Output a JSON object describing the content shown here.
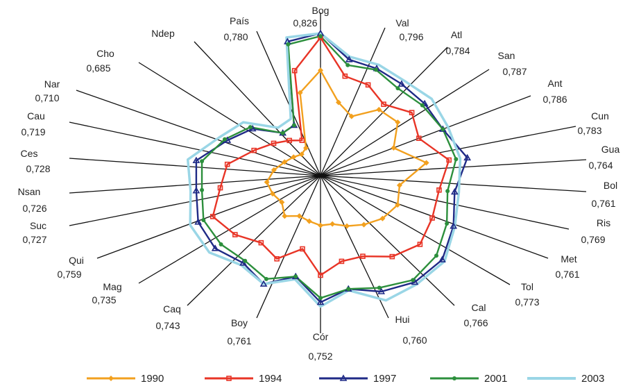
{
  "chart_data": {
    "type": "radar",
    "title": "",
    "axes": [
      {
        "label": "Bog",
        "value": "0,826"
      },
      {
        "label": "Val",
        "value": "0,796"
      },
      {
        "label": "Atl",
        "value": "0,784"
      },
      {
        "label": "San",
        "value": "0,787"
      },
      {
        "label": "Ant",
        "value": "0,786"
      },
      {
        "label": "Cun",
        "value": "0,783"
      },
      {
        "label": "Gua",
        "value": "0,764"
      },
      {
        "label": "Bol",
        "value": "0,761"
      },
      {
        "label": "Ris",
        "value": "0,769"
      },
      {
        "label": "Met",
        "value": "0,761"
      },
      {
        "label": "Tol",
        "value": "0,773"
      },
      {
        "label": "Cal",
        "value": "0,766"
      },
      {
        "label": "Hui",
        "value": "0,760"
      },
      {
        "label": "Cór",
        "value": "0,752"
      },
      {
        "label": "Boy",
        "value": "0,761"
      },
      {
        "label": "Caq",
        "value": "0,743"
      },
      {
        "label": "Mag",
        "value": "0,735"
      },
      {
        "label": "Qui",
        "value": "0,759"
      },
      {
        "label": "Suc",
        "value": "0,727"
      },
      {
        "label": "Nsan",
        "value": "0,726"
      },
      {
        "label": "Ces",
        "value": "0,728"
      },
      {
        "label": "Cau",
        "value": "0,719"
      },
      {
        "label": "Nar",
        "value": "0,710"
      },
      {
        "label": "Cho",
        "value": "0,685"
      },
      {
        "label": "Ndep",
        "value": ""
      },
      {
        "label": "País",
        "value": "0,780"
      }
    ],
    "series": [
      {
        "name": "1990",
        "color": "#f2a01e",
        "marker": "diamond",
        "values": [
          0.74,
          0.53,
          0.47,
          0.62,
          0.66,
          0.55,
          0.75,
          0.56,
          0.58,
          0.53,
          0.46,
          0.4,
          0.35,
          0.35,
          0.33,
          0.32,
          0.38,
          0.33,
          0.36,
          0.38,
          0.33,
          0.27,
          0.23,
          0.2,
          0.22,
          0.6
        ]
      },
      {
        "name": "1994",
        "color": "#e83426",
        "marker": "square",
        "values": [
          0.97,
          0.72,
          0.72,
          0.67,
          0.78,
          0.74,
          0.91,
          0.84,
          0.84,
          0.85,
          0.76,
          0.64,
          0.62,
          0.7,
          0.53,
          0.66,
          0.63,
          0.73,
          0.81,
          0.71,
          0.66,
          0.5,
          0.4,
          0.33,
          0.28,
          0.76
        ]
      },
      {
        "name": "1997",
        "color": "#1f2a86",
        "marker": "triangle",
        "values": [
          1.0,
          0.84,
          0.85,
          0.86,
          0.89,
          0.92,
          1.04,
          0.95,
          1.0,
          1.04,
          1.0,
          0.92,
          0.82,
          0.89,
          0.73,
          0.86,
          0.82,
          0.9,
          0.92,
          0.88,
          0.88,
          0.7,
          0.58,
          0.4,
          0.4,
          0.97
        ]
      },
      {
        "name": "2001",
        "color": "#2c8f3c",
        "marker": "circle",
        "values": [
          0.98,
          0.8,
          0.84,
          0.82,
          0.87,
          0.92,
          0.96,
          0.9,
          0.95,
          0.99,
          0.98,
          0.89,
          0.82,
          0.86,
          0.73,
          0.82,
          0.8,
          0.85,
          0.88,
          0.84,
          0.84,
          0.72,
          0.6,
          0.4,
          0.4,
          0.95
        ]
      },
      {
        "name": "2003",
        "color": "#9ad6e6",
        "marker": "none",
        "values": [
          1.0,
          0.86,
          0.88,
          0.89,
          0.95,
          0.96,
          0.99,
          0.98,
          1.01,
          1.06,
          1.02,
          0.99,
          0.83,
          0.92,
          0.75,
          0.86,
          0.84,
          0.95,
          0.98,
          0.92,
          0.94,
          0.76,
          0.66,
          0.45,
          0.45,
          1.0
        ]
      }
    ],
    "legend_position": "bottom",
    "grid": false
  }
}
